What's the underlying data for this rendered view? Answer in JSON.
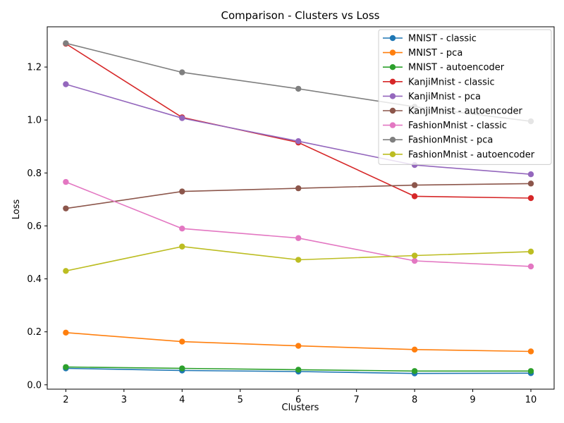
{
  "chart_data": {
    "type": "line",
    "title": "Comparison - Clusters vs Loss",
    "xlabel": "Clusters",
    "ylabel": "Loss",
    "xlim": [
      1.68,
      10.4
    ],
    "ylim": [
      -0.0165,
      1.352
    ],
    "xticks": [
      2,
      3,
      4,
      5,
      6,
      7,
      8,
      9,
      10
    ],
    "yticks": [
      0.0,
      0.2,
      0.4,
      0.6,
      0.8,
      1.0,
      1.2
    ],
    "ytick_labels": [
      "0.0",
      "0.2",
      "0.4",
      "0.6",
      "0.8",
      "1.0",
      "1.2"
    ],
    "grid": false,
    "legend_position": "top-right",
    "x": [
      2,
      4,
      6,
      8,
      10
    ],
    "series": [
      {
        "name": "MNIST - classic",
        "color": "#1f77b4",
        "values": [
          0.062,
          0.054,
          0.05,
          0.043,
          0.044
        ]
      },
      {
        "name": "MNIST - pca",
        "color": "#ff7f0e",
        "values": [
          0.197,
          0.163,
          0.147,
          0.133,
          0.126
        ]
      },
      {
        "name": "MNIST - autoencoder",
        "color": "#2ca02c",
        "values": [
          0.067,
          0.062,
          0.057,
          0.052,
          0.052
        ]
      },
      {
        "name": "KanjiMnist - classic",
        "color": "#d62728",
        "values": [
          1.288,
          1.01,
          0.915,
          0.712,
          0.705
        ]
      },
      {
        "name": "KanjiMnist - pca",
        "color": "#9467bd",
        "values": [
          1.135,
          1.007,
          0.92,
          0.83,
          0.795
        ]
      },
      {
        "name": "KanjiMnist - autoencoder",
        "color": "#8c564b",
        "values": [
          0.666,
          0.73,
          0.742,
          0.754,
          0.76
        ]
      },
      {
        "name": "FashionMnist - classic",
        "color": "#e377c2",
        "values": [
          0.766,
          0.59,
          0.554,
          0.468,
          0.447
        ]
      },
      {
        "name": "FashionMnist - pca",
        "color": "#7f7f7f",
        "values": [
          1.29,
          1.18,
          1.118,
          1.05,
          0.995
        ]
      },
      {
        "name": "FashionMnist - autoencoder",
        "color": "#bcbd22",
        "values": [
          0.43,
          0.522,
          0.472,
          0.488,
          0.503
        ]
      }
    ]
  }
}
